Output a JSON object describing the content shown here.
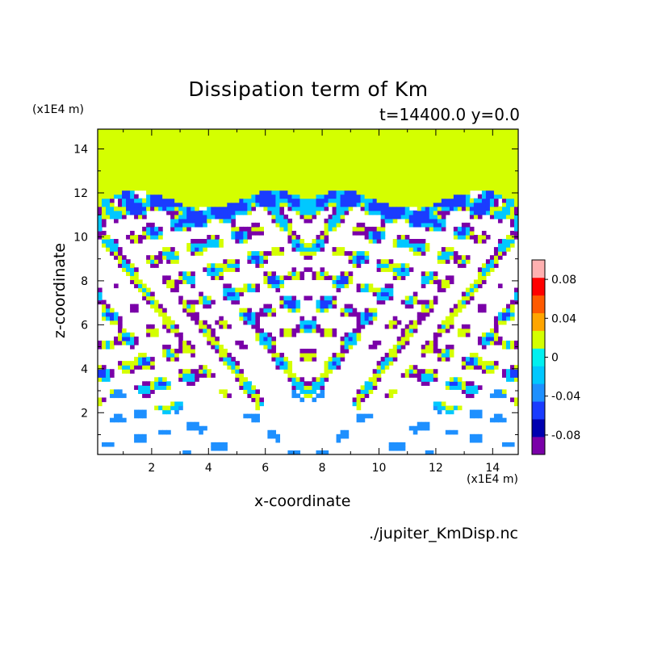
{
  "chart_data": {
    "type": "heatmap",
    "title": "Dissipation term of Km",
    "subtitle": "t=14400.0 y=0.0",
    "xlabel": "x-coordinate",
    "ylabel": "z-coordinate",
    "x_unit": "(x1E4 m)",
    "z_unit": "(x1E4 m)",
    "xlim": [
      0.1,
      14.9
    ],
    "ylim": [
      0.1,
      14.9
    ],
    "x_ticks": [
      2,
      4,
      6,
      8,
      10,
      12,
      14
    ],
    "x_tick_labels": [
      "2",
      "4",
      "6",
      "8",
      "10",
      "12",
      "14"
    ],
    "y_ticks": [
      2,
      4,
      6,
      8,
      10,
      12,
      14
    ],
    "y_tick_labels": [
      "2",
      "4",
      "6",
      "8",
      "10",
      "12",
      "14"
    ],
    "colorbar": {
      "levels": [
        -0.1,
        -0.08,
        -0.06,
        -0.04,
        -0.02,
        0.0,
        0.02,
        0.04,
        0.06,
        0.08,
        0.1
      ],
      "colors": [
        "#7a00a8",
        "#0000b0",
        "#1a3cff",
        "#1e90ff",
        "#00c8ff",
        "#00f0f0",
        "#d4ff00",
        "#ffa500",
        "#ff5a00",
        "#ff0000",
        "#ffb0b0"
      ],
      "tick_labels": [
        "-0.08",
        "-0.04",
        "0",
        "0.04",
        "0.08"
      ],
      "tick_values": [
        -0.08,
        -0.04,
        0.0,
        0.04,
        0.08
      ]
    },
    "fields": {
      "upper_region_value": 0.01,
      "upper_region_above_z": 11.5,
      "description_of_pattern_symmetry": "mirror symmetric about x=7.5"
    }
  },
  "filename": "./jupiter_KmDisp.nc"
}
